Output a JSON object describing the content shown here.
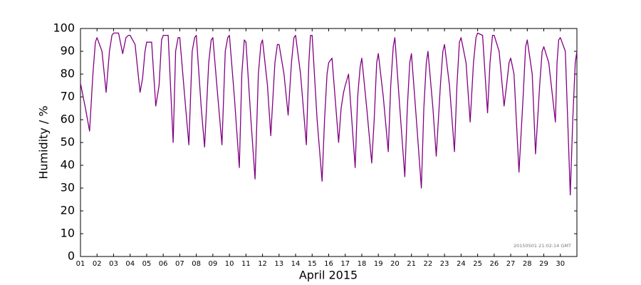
{
  "chart_data": {
    "type": "line",
    "xlabel": "April 2015",
    "ylabel": "Humidity / %",
    "annotation": "20150501 21:02:14 GMT",
    "color": "#800080",
    "x": [
      1,
      1.3,
      1.55,
      1.75,
      1.9,
      2,
      2.3,
      2.55,
      2.75,
      2.9,
      3,
      3.3,
      3.55,
      3.75,
      3.9,
      4,
      4.3,
      4.6,
      4.75,
      4.9,
      5,
      5.3,
      5.55,
      5.75,
      5.9,
      6,
      6.3,
      6.6,
      6.75,
      6.9,
      7,
      7.3,
      7.55,
      7.75,
      7.9,
      8,
      8.3,
      8.5,
      8.75,
      8.9,
      9,
      9.3,
      9.55,
      9.75,
      9.9,
      10,
      10.3,
      10.6,
      10.75,
      10.9,
      11,
      11.3,
      11.55,
      11.75,
      11.9,
      12,
      12.3,
      12.5,
      12.75,
      12.9,
      13,
      13.3,
      13.55,
      13.75,
      13.9,
      14,
      14.3,
      14.65,
      14.8,
      14.9,
      15,
      15.3,
      15.6,
      15.75,
      15.9,
      16,
      16.2,
      16.6,
      16.75,
      16.9,
      17,
      17.2,
      17.6,
      17.75,
      17.9,
      18,
      18.3,
      18.6,
      18.75,
      18.9,
      19,
      19.3,
      19.6,
      19.75,
      19.9,
      20,
      20.3,
      20.6,
      20.75,
      20.9,
      21,
      21.3,
      21.6,
      21.75,
      21.9,
      22,
      22.3,
      22.5,
      22.75,
      22.9,
      23,
      23.3,
      23.6,
      23.75,
      23.9,
      24,
      24.3,
      24.55,
      24.75,
      24.9,
      25,
      25.3,
      25.6,
      25.75,
      25.9,
      26,
      26.3,
      26.6,
      26.75,
      26.9,
      27,
      27.2,
      27.5,
      27.75,
      27.9,
      28,
      28.3,
      28.5,
      28.75,
      28.9,
      29,
      29.3,
      29.7,
      29.8,
      29.9,
      30,
      30.3,
      30.6,
      30.75,
      30.9,
      31
    ],
    "values": [
      76,
      65,
      55,
      80,
      94,
      96,
      90,
      72,
      90,
      97,
      98,
      98,
      89,
      96,
      97,
      97,
      93,
      72,
      78,
      90,
      94,
      94,
      66,
      75,
      95,
      97,
      97,
      50,
      90,
      96,
      96,
      70,
      49,
      90,
      96,
      97,
      65,
      48,
      85,
      95,
      96,
      70,
      49,
      90,
      96,
      97,
      70,
      39,
      80,
      95,
      94,
      60,
      34,
      80,
      93,
      95,
      75,
      53,
      85,
      93,
      93,
      80,
      62,
      85,
      96,
      97,
      80,
      49,
      85,
      97,
      97,
      60,
      33,
      60,
      80,
      85,
      87,
      50,
      65,
      72,
      75,
      80,
      39,
      70,
      83,
      87,
      65,
      41,
      60,
      85,
      89,
      70,
      46,
      75,
      92,
      96,
      65,
      35,
      65,
      85,
      89,
      60,
      30,
      65,
      85,
      90,
      65,
      44,
      75,
      90,
      93,
      75,
      46,
      75,
      94,
      96,
      85,
      59,
      85,
      96,
      98,
      97,
      63,
      85,
      97,
      97,
      90,
      66,
      75,
      85,
      87,
      80,
      37,
      70,
      92,
      95,
      80,
      45,
      75,
      90,
      92,
      85,
      59,
      85,
      95,
      96,
      90,
      27,
      60,
      85,
      90
    ],
    "xlim": [
      1,
      31
    ],
    "ylim": [
      0,
      100
    ],
    "xticks": [
      {
        "value": 1,
        "label": "01"
      },
      {
        "value": 2,
        "label": "02"
      },
      {
        "value": 3,
        "label": "03"
      },
      {
        "value": 4,
        "label": "04"
      },
      {
        "value": 5,
        "label": "05"
      },
      {
        "value": 6,
        "label": "06"
      },
      {
        "value": 7,
        "label": "07"
      },
      {
        "value": 8,
        "label": "08"
      },
      {
        "value": 9,
        "label": "09"
      },
      10,
      11,
      12,
      13,
      14,
      15,
      16,
      17,
      18,
      19,
      20,
      21,
      22,
      23,
      24,
      25,
      26,
      27,
      28,
      29,
      30
    ],
    "yticks": [
      0,
      10,
      20,
      30,
      40,
      50,
      60,
      70,
      80,
      90,
      100
    ]
  }
}
